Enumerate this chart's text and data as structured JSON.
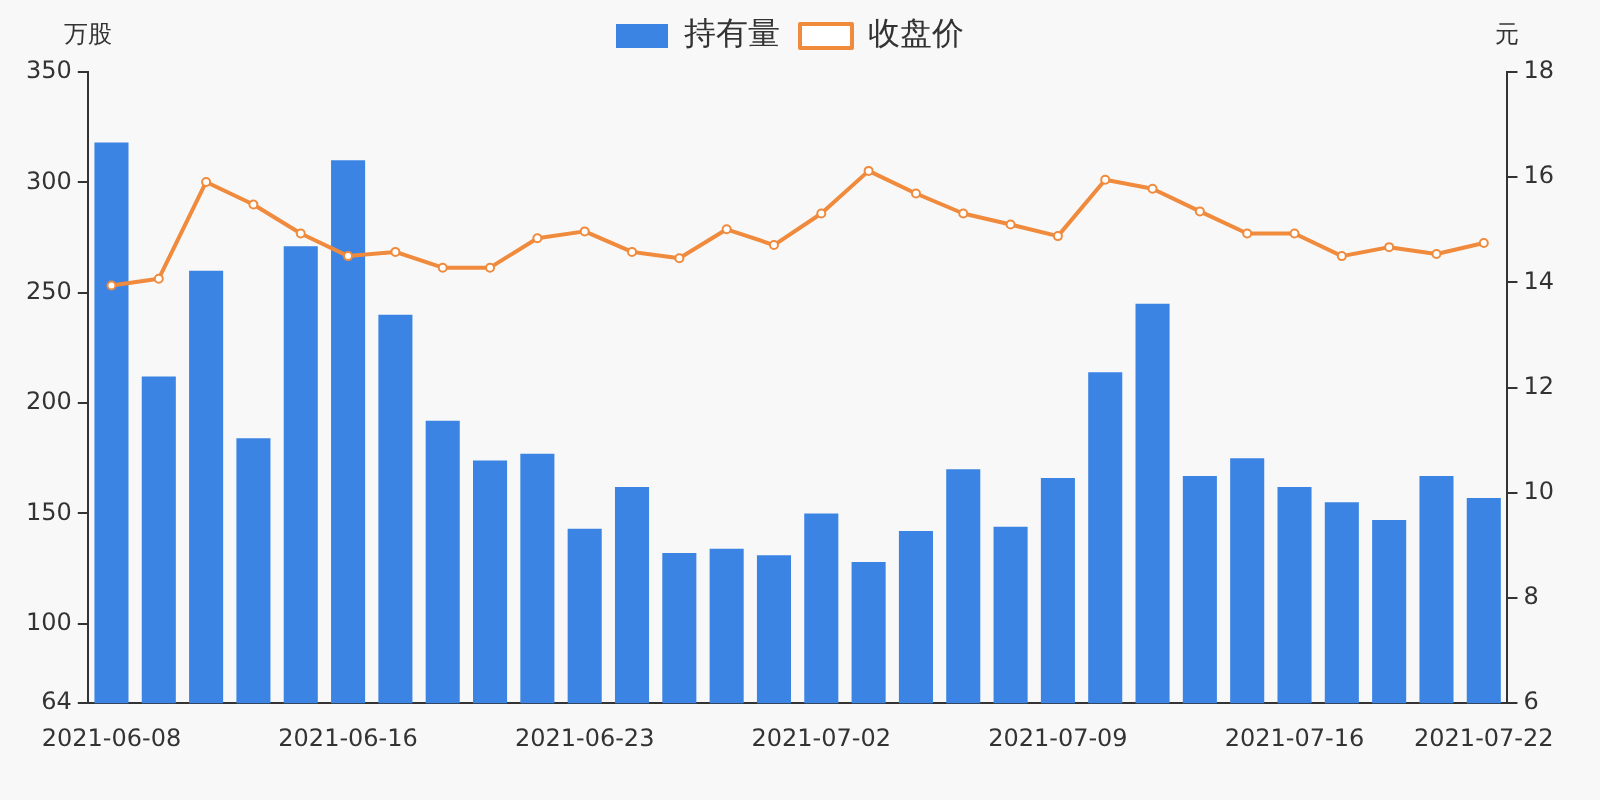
{
  "chart_data": {
    "type": "bar",
    "ylabel": "万股",
    "y2label": "元",
    "categories": [
      "2021-06-08",
      null,
      null,
      null,
      null,
      "2021-06-16",
      null,
      null,
      null,
      null,
      "2021-06-23",
      null,
      null,
      null,
      null,
      "2021-07-02",
      null,
      null,
      null,
      null,
      "2021-07-09",
      null,
      null,
      null,
      null,
      "2021-07-16",
      null,
      null,
      null,
      "2021-07-22"
    ],
    "series": [
      {
        "name": "持有量",
        "color": "#3b84e3",
        "values": [
          318,
          212,
          260,
          184,
          271,
          310,
          240,
          192,
          174,
          177,
          143,
          162,
          132,
          134,
          131,
          150,
          128,
          142,
          170,
          144,
          166,
          214,
          245,
          167,
          175,
          162,
          155,
          147,
          167,
          157
        ]
      },
      {
        "name": "收盘价",
        "type": "line",
        "axis": "y2",
        "color": "#f08a3c",
        "marker": "circle",
        "values": [
          13.94,
          14.07,
          15.91,
          15.48,
          14.93,
          14.5,
          14.58,
          14.28,
          14.28,
          14.84,
          14.97,
          14.58,
          14.46,
          15.01,
          14.71,
          15.31,
          16.12,
          15.69,
          15.31,
          15.1,
          14.88,
          15.95,
          15.78,
          15.35,
          14.93,
          14.93,
          14.5,
          14.67,
          14.54,
          14.75
        ]
      }
    ],
    "ylim": [
      64,
      350
    ],
    "yticks": [
      64,
      100,
      150,
      200,
      250,
      300,
      350
    ],
    "y2lim": [
      6,
      18
    ],
    "y2ticks": [
      6,
      8,
      10,
      12,
      14,
      16,
      18
    ],
    "grid": false,
    "legend": "top"
  }
}
